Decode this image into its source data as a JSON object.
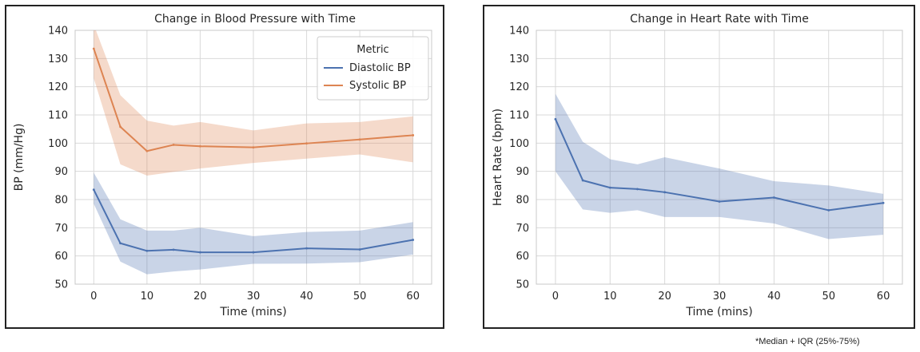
{
  "chart_data": [
    {
      "type": "line",
      "title": "Change in Blood Pressure with Time",
      "xlabel": "Time (mins)",
      "ylabel": "BP (mm/Hg)",
      "xlim": [
        -3.5,
        63.5
      ],
      "ylim": [
        50,
        140
      ],
      "xticks": [
        "0",
        "10",
        "20",
        "30",
        "40",
        "50",
        "60"
      ],
      "yticks": [
        "50",
        "60",
        "70",
        "80",
        "90",
        "100",
        "110",
        "120",
        "130",
        "140"
      ],
      "grid": true,
      "legend": {
        "title": "Metric",
        "placement": "top-right",
        "entries": [
          "Diastolic BP",
          "Systolic BP"
        ]
      },
      "x": [
        0,
        5,
        10,
        15,
        20,
        30,
        40,
        50,
        60
      ],
      "series": [
        {
          "name": "Diastolic BP",
          "color": "#4c72b0",
          "values": [
            83.5,
            64.5,
            61.8,
            62.2,
            61.3,
            61.3,
            62.7,
            62.3,
            65.7
          ],
          "lower": [
            78.5,
            58,
            53.5,
            54.5,
            55.2,
            57.2,
            57.3,
            57.8,
            60.5
          ],
          "upper": [
            89.5,
            73,
            69,
            69,
            70,
            67,
            68.5,
            69,
            72
          ]
        },
        {
          "name": "Systolic BP",
          "color": "#dd8452",
          "values": [
            133.5,
            105.8,
            97.2,
            99.4,
            98.9,
            98.5,
            99.9,
            101.3,
            102.8
          ],
          "lower": [
            123,
            92.5,
            88.5,
            89.8,
            91,
            93,
            94.5,
            96,
            93.2
          ],
          "upper": [
            142,
            117,
            108,
            106.2,
            107.5,
            104.5,
            107,
            107.5,
            109.5
          ]
        }
      ]
    },
    {
      "type": "line",
      "title": "Change in Heart Rate with Time",
      "xlabel": "Time (mins)",
      "ylabel": "Heart Rate (bpm)",
      "xlim": [
        -3.5,
        63.5
      ],
      "ylim": [
        50,
        140
      ],
      "xticks": [
        "0",
        "10",
        "20",
        "30",
        "40",
        "50",
        "60"
      ],
      "yticks": [
        "50",
        "60",
        "70",
        "80",
        "90",
        "100",
        "110",
        "120",
        "130",
        "140"
      ],
      "grid": true,
      "x": [
        0,
        5,
        10,
        15,
        20,
        30,
        40,
        50,
        60
      ],
      "series": [
        {
          "color": "#4c72b0",
          "values": [
            108.5,
            86.8,
            84.2,
            83.7,
            82.6,
            79.3,
            80.7,
            76.2,
            78.8
          ],
          "lower": [
            90,
            76.5,
            75.3,
            76.2,
            73.8,
            73.8,
            71.5,
            66,
            67.5
          ],
          "upper": [
            117.5,
            100.5,
            94.3,
            92.5,
            95,
            91,
            86.5,
            85,
            82
          ]
        }
      ]
    }
  ],
  "footnote": "*Median + IQR (25%-75%)"
}
